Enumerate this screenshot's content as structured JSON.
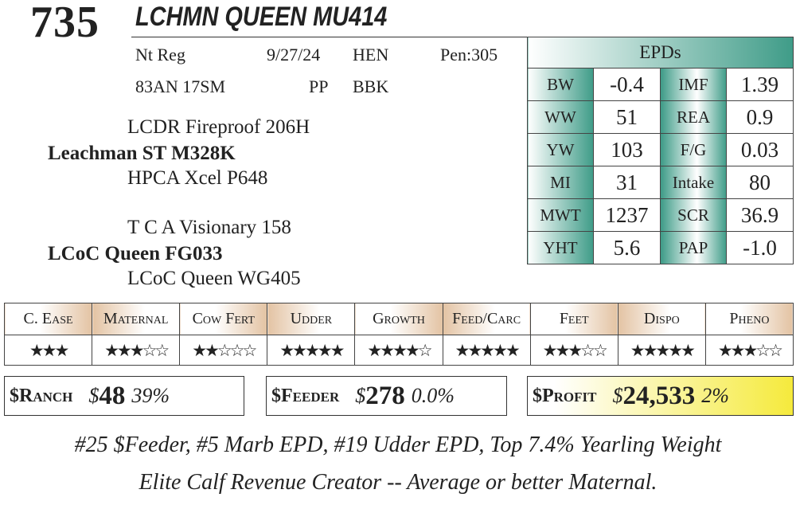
{
  "lot": "735",
  "name": "LCHMN QUEEN MU414",
  "info": {
    "reg": "Nt Reg",
    "dob": "9/27/24",
    "sex": "HEN",
    "pen": "Pen:305",
    "tattoo": "83AN 17SM",
    "pp": "PP",
    "color": "BBK"
  },
  "pedigree": {
    "sire_sire": "LCDR Fireproof 206H",
    "sire": "Leachman ST M328K",
    "sire_dam": "HPCA Xcel P648",
    "dam_sire": "T C A Visionary 158",
    "dam": "LCoC Queen FG033",
    "dam_dam": "LCoC Queen WG405"
  },
  "epds": {
    "title": "EPDs",
    "rows": [
      {
        "l1": "BW",
        "v1": "-0.4",
        "l2": "IMF",
        "v2": "1.39"
      },
      {
        "l1": "WW",
        "v1": "51",
        "l2": "REA",
        "v2": "0.9"
      },
      {
        "l1": "YW",
        "v1": "103",
        "l2": "F/G",
        "v2": "0.03"
      },
      {
        "l1": "MI",
        "v1": "31",
        "l2": "Intake",
        "v2": "80"
      },
      {
        "l1": "MWT",
        "v1": "1237",
        "l2": "SCR",
        "v2": "36.9"
      },
      {
        "l1": "YHT",
        "v1": "5.6",
        "l2": "PAP",
        "v2": "-1.0"
      }
    ]
  },
  "ratings": [
    {
      "label": "C. Ease",
      "stars": 3,
      "max": 3
    },
    {
      "label": "Maternal",
      "stars": 3,
      "max": 5
    },
    {
      "label": "Cow Fert",
      "stars": 2,
      "max": 5
    },
    {
      "label": "Udder",
      "stars": 5,
      "max": 5
    },
    {
      "label": "Growth",
      "stars": 4,
      "max": 5
    },
    {
      "label": "Feed/Carc",
      "stars": 5,
      "max": 5
    },
    {
      "label": "Feet",
      "stars": 3,
      "max": 5
    },
    {
      "label": "Dispo",
      "stars": 5,
      "max": 5
    },
    {
      "label": "Pheno",
      "stars": 3,
      "max": 5
    }
  ],
  "indexes": {
    "ranch": {
      "label": "$Ranch",
      "dollar": "$",
      "value": "48",
      "pct": "39%"
    },
    "feeder": {
      "label": "$Feeder",
      "dollar": "$",
      "value": "278",
      "pct": "0.0%"
    },
    "profit": {
      "label": "$Profit",
      "dollar": "$",
      "value": "24,533",
      "pct": "2%"
    }
  },
  "comments": [
    "#25 $Feeder, #5 Marb EPD, #19 Udder EPD, Top 7.4% Yearling Weight",
    "Elite Calf Revenue Creator -- Average or better Maternal."
  ],
  "colors": {
    "epd_teal": "#3f9c88",
    "rating_tan": "#e3c3a3",
    "profit_yellow": "#f5ea3c"
  }
}
